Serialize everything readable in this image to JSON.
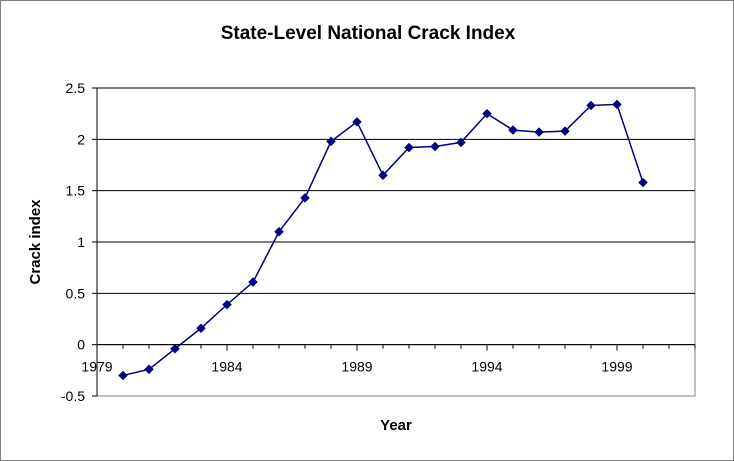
{
  "chart_data": {
    "type": "line",
    "title": "State-Level National Crack Index",
    "xlabel": "Year",
    "ylabel": "Crack index",
    "xlim": [
      1979,
      2002
    ],
    "ylim": [
      -0.5,
      2.5
    ],
    "x_ticks": [
      1979,
      1984,
      1989,
      1994,
      1999
    ],
    "y_ticks": [
      -0.5,
      0,
      0.5,
      1,
      1.5,
      2,
      2.5
    ],
    "y_tick_labels": [
      "-0.5",
      "0",
      "0.5",
      "1",
      "1.5",
      "2",
      "2.5"
    ],
    "grid": "horizontal",
    "legend": "none",
    "series": [
      {
        "color": "#000080",
        "marker": "diamond",
        "x": [
          1980,
          1981,
          1982,
          1983,
          1984,
          1985,
          1986,
          1987,
          1988,
          1989,
          1990,
          1991,
          1992,
          1993,
          1994,
          1995,
          1996,
          1997,
          1998,
          1999,
          2000
        ],
        "values": [
          -0.3,
          -0.24,
          -0.04,
          0.16,
          0.39,
          0.61,
          1.1,
          1.43,
          1.98,
          2.17,
          1.65,
          1.92,
          1.93,
          1.97,
          2.25,
          2.09,
          2.07,
          2.08,
          2.33,
          2.34,
          1.58
        ]
      }
    ]
  }
}
